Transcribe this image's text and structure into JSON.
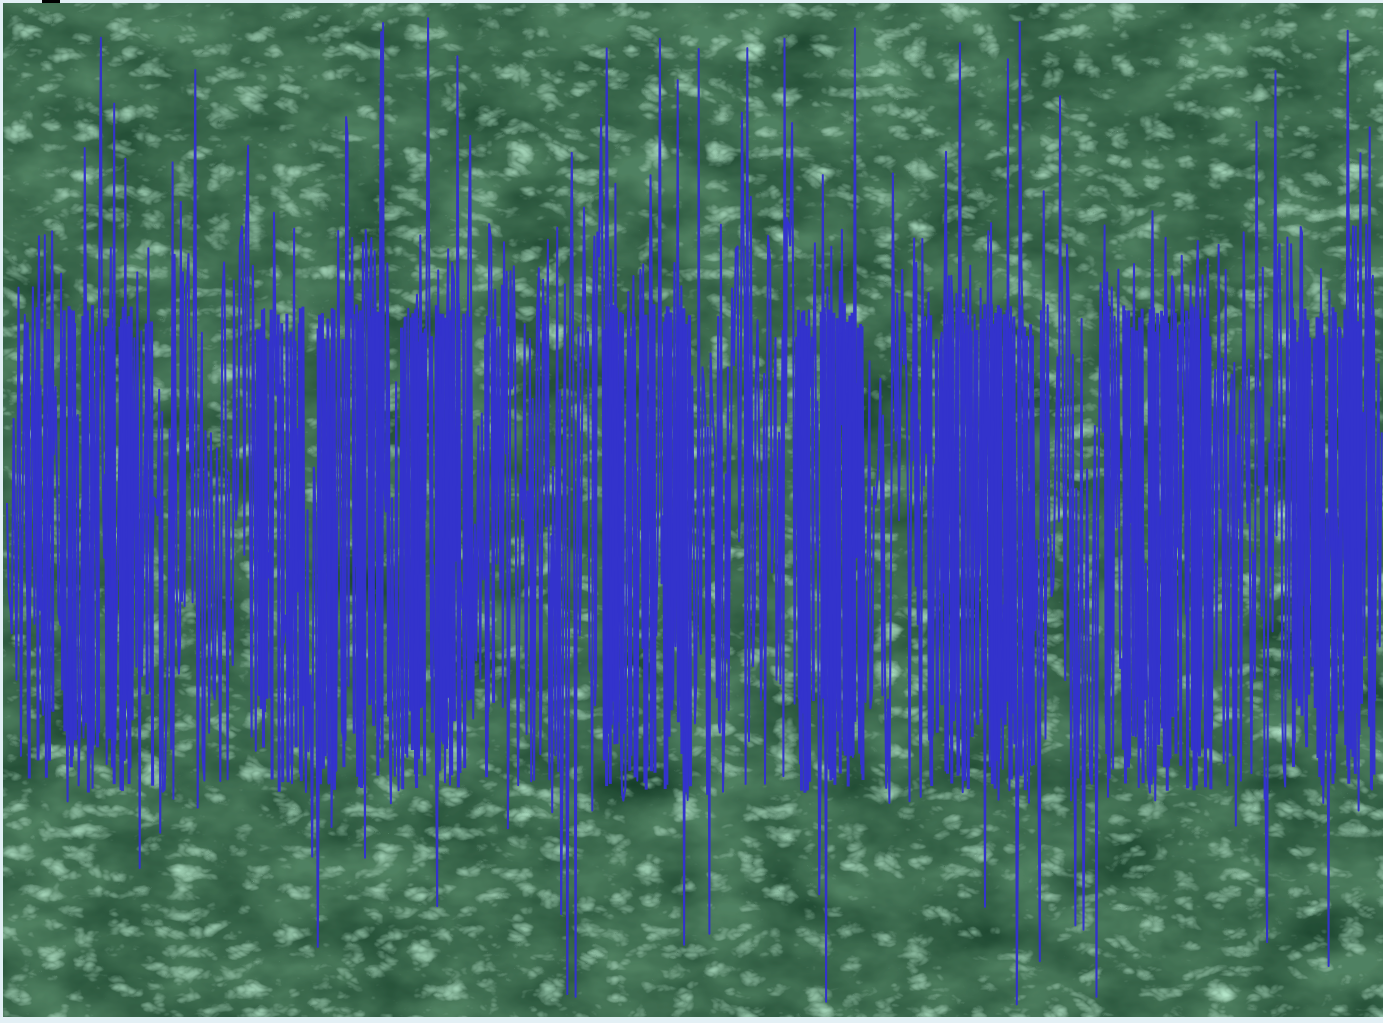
{
  "canvas": {
    "background_colors": [
      "#0f2c18",
      "#1f4a2e",
      "#2d6a45",
      "#4f8f68",
      "#7fc19a"
    ],
    "waveform_color": "#3333cc",
    "frame_color": "#e3f0f5",
    "waveform_description_icon": "waveform-trace"
  }
}
